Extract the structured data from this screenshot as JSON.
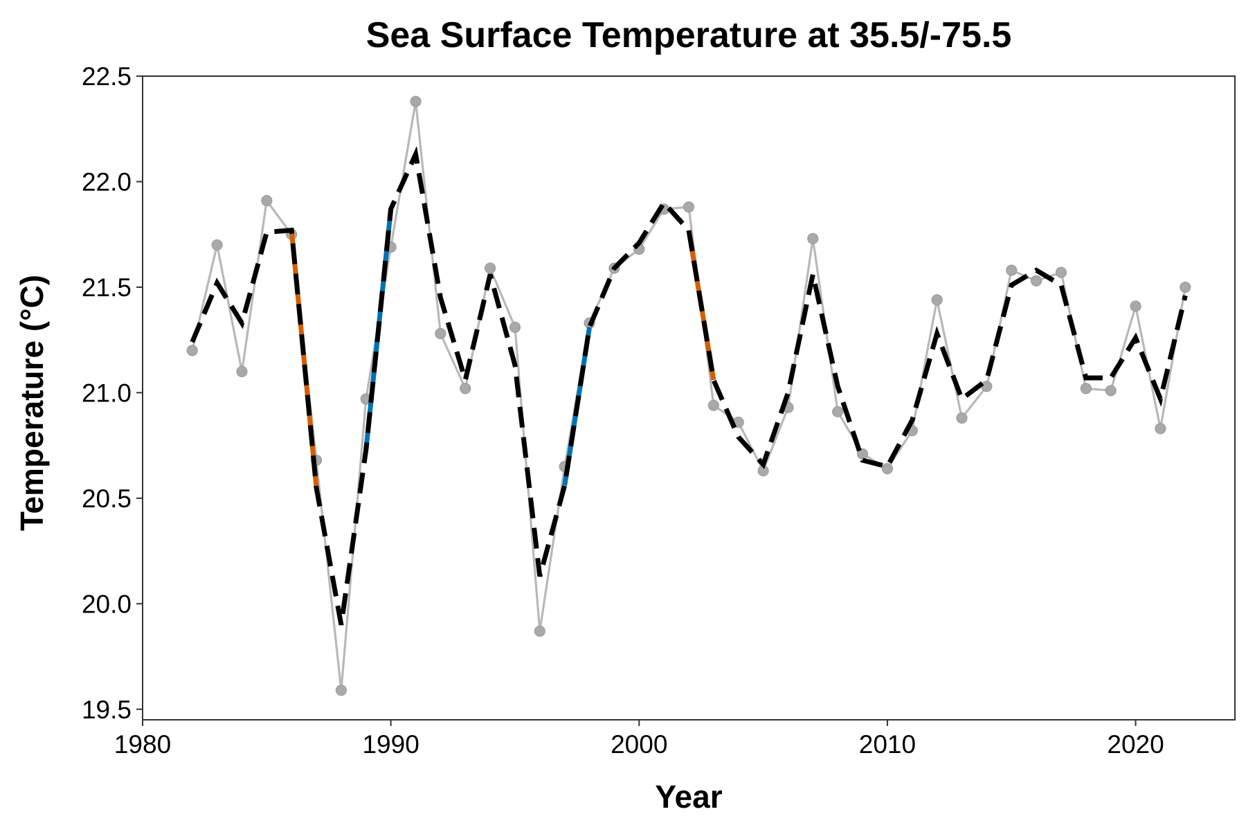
{
  "chart_data": {
    "type": "line",
    "title": "Sea Surface Temperature at 35.5/-75.5",
    "xlabel": "Year",
    "ylabel": "Temperature (°C)",
    "xlim": [
      1980,
      2024
    ],
    "ylim": [
      19.45,
      22.5
    ],
    "x_ticks": [
      "1980",
      "1990",
      "2000",
      "2010",
      "2020"
    ],
    "y_ticks": [
      "19.5",
      "20.0",
      "20.5",
      "21.0",
      "21.5",
      "22.0",
      "22.5"
    ],
    "grid": false,
    "legend": "none",
    "colors": {
      "observed": "#b8b8b8",
      "observed_marker": "#a9a9a9",
      "smoothed": "#000000",
      "decline": "#d55e00",
      "rise": "#0072b2",
      "axis": "#333333"
    },
    "series": [
      {
        "role": "observed",
        "x": [
          1982,
          1983,
          1984,
          1985,
          1986,
          1987,
          1988,
          1989,
          1990,
          1991,
          1992,
          1993,
          1994,
          1995,
          1996,
          1997,
          1998,
          1999,
          2000,
          2001,
          2002,
          2003,
          2004,
          2005,
          2006,
          2007,
          2008,
          2009,
          2010,
          2011,
          2012,
          2013,
          2014,
          2015,
          2016,
          2017,
          2018,
          2019,
          2020,
          2021,
          2022
        ],
        "values": [
          21.2,
          21.7,
          21.1,
          21.91,
          21.75,
          20.68,
          19.59,
          20.97,
          21.69,
          22.38,
          21.28,
          21.02,
          21.59,
          21.31,
          19.87,
          20.65,
          21.33,
          21.59,
          21.68,
          21.87,
          21.88,
          20.94,
          20.86,
          20.63,
          20.93,
          21.73,
          20.91,
          20.71,
          20.64,
          20.82,
          21.44,
          20.88,
          21.03,
          21.58,
          21.53,
          21.57,
          21.02,
          21.01,
          21.41,
          20.83,
          21.5
        ]
      },
      {
        "role": "smoothed",
        "x": [
          1982,
          1983,
          1984,
          1985,
          1986,
          1987,
          1988,
          1989,
          1990,
          1991,
          1992,
          1993,
          1994,
          1995,
          1996,
          1997,
          1998,
          1999,
          2000,
          2001,
          2002,
          2003,
          2004,
          2005,
          2006,
          2007,
          2008,
          2009,
          2010,
          2011,
          2012,
          2013,
          2014,
          2015,
          2016,
          2017,
          2018,
          2019,
          2020,
          2021,
          2022
        ],
        "values": [
          21.24,
          21.52,
          21.33,
          21.76,
          21.77,
          20.55,
          19.9,
          20.73,
          21.87,
          22.13,
          21.45,
          21.06,
          21.56,
          21.13,
          20.13,
          20.56,
          21.31,
          21.59,
          21.71,
          21.9,
          21.77,
          21.06,
          20.79,
          20.66,
          21.0,
          21.56,
          21.03,
          20.68,
          20.65,
          20.87,
          21.28,
          20.97,
          21.06,
          21.51,
          21.58,
          21.51,
          21.07,
          21.07,
          21.26,
          20.97,
          21.46
        ]
      }
    ],
    "highlights": [
      {
        "trend": "decline",
        "x": [
          1986,
          1987
        ],
        "values": [
          21.77,
          20.55
        ]
      },
      {
        "trend": "rise",
        "x": [
          1989,
          1990
        ],
        "values": [
          20.73,
          21.87
        ]
      },
      {
        "trend": "rise",
        "x": [
          1997,
          1998
        ],
        "values": [
          20.56,
          21.31
        ]
      },
      {
        "trend": "decline",
        "x": [
          2002,
          2003
        ],
        "values": [
          21.77,
          21.06
        ]
      }
    ]
  }
}
